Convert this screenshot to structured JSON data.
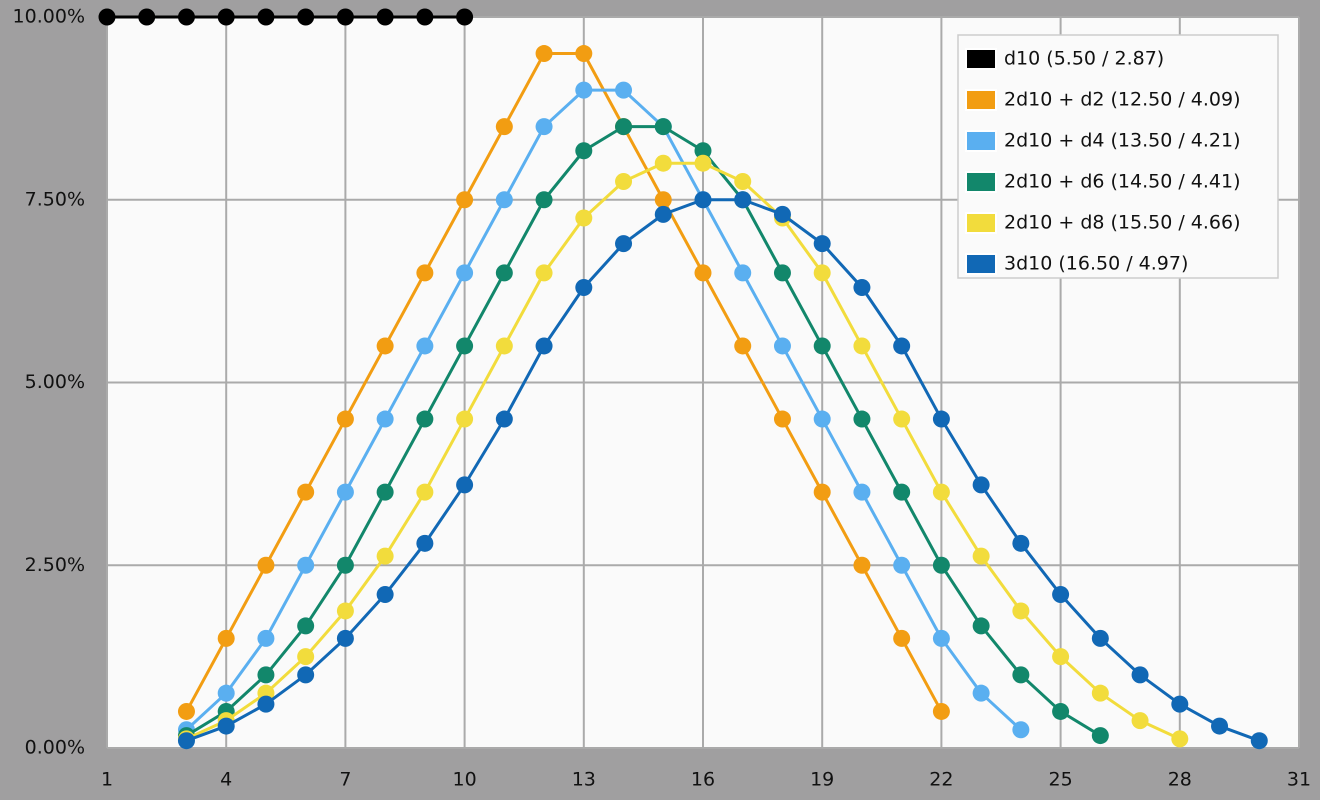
{
  "chart_data": {
    "type": "line",
    "xlim": [
      1,
      31
    ],
    "xticks": [
      1,
      4,
      7,
      10,
      13,
      16,
      19,
      22,
      25,
      28,
      31
    ],
    "ylim": [
      0,
      10
    ],
    "yticks": [
      {
        "value": 0,
        "label": "0.00%"
      },
      {
        "value": 2.5,
        "label": "2.50%"
      },
      {
        "value": 5,
        "label": "5.00%"
      },
      {
        "value": 7.5,
        "label": "7.50%"
      },
      {
        "value": 10,
        "label": "10.00%"
      }
    ],
    "grid": true,
    "legend": "upper right",
    "series": [
      {
        "name": "d10 (5.50 / 2.87)",
        "color": "#000000",
        "x": [
          1,
          2,
          3,
          4,
          5,
          6,
          7,
          8,
          9,
          10
        ],
        "values": [
          10,
          10,
          10,
          10,
          10,
          10,
          10,
          10,
          10,
          10
        ]
      },
      {
        "name": "2d10 + d2 (12.50 / 4.09)",
        "color": "#f29d12",
        "x": [
          3,
          4,
          5,
          6,
          7,
          8,
          9,
          10,
          11,
          12,
          13,
          14,
          15,
          16,
          17,
          18,
          19,
          20,
          21,
          22
        ],
        "values": [
          0.5,
          1.5,
          2.5,
          3.5,
          4.5,
          5.5,
          6.5,
          7.5,
          8.5,
          9.5,
          9.5,
          8.5,
          7.5,
          6.5,
          5.5,
          4.5,
          3.5,
          2.5,
          1.5,
          0.5
        ]
      },
      {
        "name": "2d10 + d4 (13.50 / 4.21)",
        "color": "#5aaff0",
        "x": [
          3,
          4,
          5,
          6,
          7,
          8,
          9,
          10,
          11,
          12,
          13,
          14,
          15,
          16,
          17,
          18,
          19,
          20,
          21,
          22,
          23,
          24
        ],
        "values": [
          0.25,
          0.75,
          1.5,
          2.5,
          3.5,
          4.5,
          5.5,
          6.5,
          7.5,
          8.5,
          9,
          9,
          8.5,
          7.5,
          6.5,
          5.5,
          4.5,
          3.5,
          2.5,
          1.5,
          0.75,
          0.25
        ]
      },
      {
        "name": "2d10 + d6 (14.50 / 4.41)",
        "color": "#12876b",
        "x": [
          3,
          4,
          5,
          6,
          7,
          8,
          9,
          10,
          11,
          12,
          13,
          14,
          15,
          16,
          17,
          18,
          19,
          20,
          21,
          22,
          23,
          24,
          25,
          26
        ],
        "values": [
          0.17,
          0.5,
          1,
          1.67,
          2.5,
          3.5,
          4.5,
          5.5,
          6.5,
          7.5,
          8.17,
          8.5,
          8.5,
          8.17,
          7.5,
          6.5,
          5.5,
          4.5,
          3.5,
          2.5,
          1.67,
          1,
          0.5,
          0.17
        ]
      },
      {
        "name": "2d10 + d8 (15.50 / 4.66)",
        "color": "#f2dc3c",
        "x": [
          3,
          4,
          5,
          6,
          7,
          8,
          9,
          10,
          11,
          12,
          13,
          14,
          15,
          16,
          17,
          18,
          19,
          20,
          21,
          22,
          23,
          24,
          25,
          26,
          27,
          28
        ],
        "values": [
          0.125,
          0.375,
          0.75,
          1.25,
          1.875,
          2.625,
          3.5,
          4.5,
          5.5,
          6.5,
          7.25,
          7.75,
          8,
          8,
          7.75,
          7.25,
          6.5,
          5.5,
          4.5,
          3.5,
          2.625,
          1.875,
          1.25,
          0.75,
          0.375,
          0.125
        ]
      },
      {
        "name": "3d10 (16.50 / 4.97)",
        "color": "#1168b5",
        "x": [
          3,
          4,
          5,
          6,
          7,
          8,
          9,
          10,
          11,
          12,
          13,
          14,
          15,
          16,
          17,
          18,
          19,
          20,
          21,
          22,
          23,
          24,
          25,
          26,
          27,
          28,
          29,
          30
        ],
        "values": [
          0.1,
          0.3,
          0.6,
          1,
          1.5,
          2.1,
          2.8,
          3.6,
          4.5,
          5.5,
          6.3,
          6.9,
          7.3,
          7.5,
          7.5,
          7.3,
          6.9,
          6.3,
          5.5,
          4.5,
          3.6,
          2.8,
          2.1,
          1.5,
          1,
          0.6,
          0.3,
          0.1
        ]
      }
    ]
  }
}
